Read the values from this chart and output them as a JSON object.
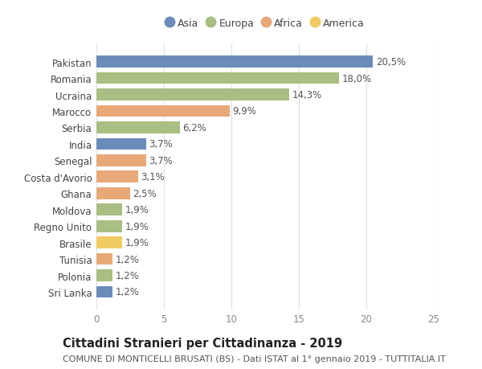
{
  "countries": [
    "Pakistan",
    "Romania",
    "Ucraina",
    "Marocco",
    "Serbia",
    "India",
    "Senegal",
    "Costa d'Avorio",
    "Ghana",
    "Moldova",
    "Regno Unito",
    "Brasile",
    "Tunisia",
    "Polonia",
    "Sri Lanka"
  ],
  "values": [
    20.5,
    18.0,
    14.3,
    9.9,
    6.2,
    3.7,
    3.7,
    3.1,
    2.5,
    1.9,
    1.9,
    1.9,
    1.2,
    1.2,
    1.2
  ],
  "labels": [
    "20,5%",
    "18,0%",
    "14,3%",
    "9,9%",
    "6,2%",
    "3,7%",
    "3,7%",
    "3,1%",
    "2,5%",
    "1,9%",
    "1,9%",
    "1,9%",
    "1,2%",
    "1,2%",
    "1,2%"
  ],
  "continents": [
    "Asia",
    "Europa",
    "Europa",
    "Africa",
    "Europa",
    "Asia",
    "Africa",
    "Africa",
    "Africa",
    "Europa",
    "Europa",
    "America",
    "Africa",
    "Europa",
    "Asia"
  ],
  "colors": {
    "Asia": "#6b8cba",
    "Europa": "#a8be82",
    "Africa": "#e8a878",
    "America": "#f0cc60"
  },
  "legend_order": [
    "Asia",
    "Europa",
    "Africa",
    "America"
  ],
  "xlim": [
    0,
    25
  ],
  "xticks": [
    0,
    5,
    10,
    15,
    20,
    25
  ],
  "title": "Cittadini Stranieri per Cittadinanza - 2019",
  "subtitle": "COMUNE DI MONTICELLI BRUSATI (BS) - Dati ISTAT al 1° gennaio 2019 - TUTTITALIA.IT",
  "bg_color": "#ffffff",
  "grid_color": "#e0e0e0",
  "bar_height": 0.72,
  "label_fontsize": 8.5,
  "tick_fontsize": 8.5,
  "title_fontsize": 10.5,
  "subtitle_fontsize": 8.0,
  "legend_fontsize": 9.0
}
